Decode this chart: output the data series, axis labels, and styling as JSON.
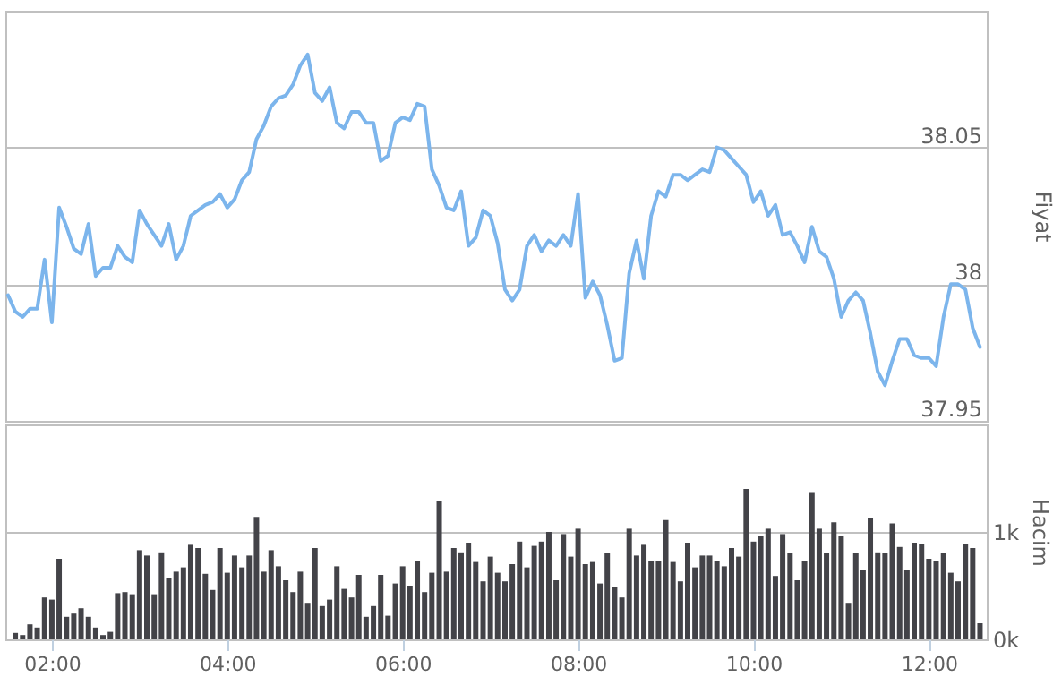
{
  "chart_data": [
    {
      "type": "line",
      "color": "#7cb5ec",
      "ylabel": "Fiyat",
      "grid": "y",
      "tick_labels": "y",
      "xlim": [
        1.47,
        12.66
      ],
      "ylim": [
        37.95,
        38.1
      ],
      "yticks": [
        37.95,
        {
          "value": 38,
          "label": "38"
        },
        38.05
      ],
      "x": [
        1.5,
        1.583,
        1.667,
        1.75,
        1.833,
        1.917,
        2,
        2.083,
        2.167,
        2.25,
        2.333,
        2.417,
        2.5,
        2.583,
        2.667,
        2.75,
        2.833,
        2.917,
        3,
        3.083,
        3.167,
        3.25,
        3.333,
        3.417,
        3.5,
        3.583,
        3.667,
        3.75,
        3.833,
        3.917,
        4,
        4.083,
        4.167,
        4.25,
        4.333,
        4.417,
        4.5,
        4.583,
        4.667,
        4.75,
        4.833,
        4.917,
        5,
        5.083,
        5.167,
        5.25,
        5.333,
        5.417,
        5.5,
        5.583,
        5.667,
        5.75,
        5.833,
        5.917,
        6,
        6.083,
        6.167,
        6.25,
        6.333,
        6.417,
        6.5,
        6.583,
        6.667,
        6.75,
        6.833,
        6.917,
        7,
        7.083,
        7.167,
        7.25,
        7.333,
        7.417,
        7.5,
        7.583,
        7.667,
        7.75,
        7.833,
        7.917,
        8,
        8.083,
        8.167,
        8.25,
        8.333,
        8.417,
        8.5,
        8.583,
        8.667,
        8.75,
        8.833,
        8.917,
        9,
        9.083,
        9.167,
        9.25,
        9.333,
        9.417,
        9.5,
        9.583,
        9.667,
        9.75,
        9.833,
        9.917,
        10,
        10.083,
        10.167,
        10.25,
        10.333,
        10.417,
        10.5,
        10.583,
        10.667,
        10.75,
        10.833,
        10.917,
        11,
        11.083,
        11.167,
        11.25,
        11.333,
        11.417,
        11.5,
        11.583,
        11.667,
        11.75,
        11.833,
        11.917,
        12,
        12.083,
        12.167,
        12.25,
        12.333,
        12.417,
        12.5,
        12.583
      ],
      "values": [
        37.996,
        37.99,
        37.988,
        37.991,
        37.991,
        38.009,
        37.986,
        38.028,
        38.021,
        38.013,
        38.011,
        38.022,
        38.003,
        38.006,
        38.006,
        38.014,
        38.01,
        38.008,
        38.027,
        38.022,
        38.018,
        38.014,
        38.022,
        38.009,
        38.014,
        38.025,
        38.027,
        38.029,
        38.03,
        38.033,
        38.028,
        38.031,
        38.038,
        38.041,
        38.053,
        38.058,
        38.065,
        38.068,
        38.069,
        38.073,
        38.08,
        38.084,
        38.07,
        38.067,
        38.072,
        38.059,
        38.057,
        38.063,
        38.063,
        38.059,
        38.059,
        38.045,
        38.047,
        38.059,
        38.061,
        38.06,
        38.066,
        38.065,
        38.042,
        38.036,
        38.028,
        38.027,
        38.034,
        38.014,
        38.017,
        38.027,
        38.025,
        38.015,
        37.998,
        37.994,
        37.998,
        38.014,
        38.018,
        38.012,
        38.016,
        38.014,
        38.018,
        38.014,
        38.033,
        37.995,
        38.001,
        37.996,
        37.985,
        37.972,
        37.973,
        38.004,
        38.016,
        38.002,
        38.025,
        38.034,
        38.032,
        38.04,
        38.04,
        38.038,
        38.04,
        38.042,
        38.041,
        38.05,
        38.049,
        38.046,
        38.043,
        38.04,
        38.03,
        38.034,
        38.025,
        38.029,
        38.018,
        38.019,
        38.014,
        38.008,
        38.021,
        38.012,
        38.01,
        38.002,
        37.988,
        37.994,
        37.997,
        37.994,
        37.982,
        37.968,
        37.963,
        37.972,
        37.98,
        37.98,
        37.974,
        37.973,
        37.973,
        37.97,
        37.988,
        38,
        38,
        37.998,
        37.984,
        37.977
      ]
    },
    {
      "type": "bar",
      "color": "#434348",
      "ylabel": "Hacim",
      "grid": "y",
      "xlim": [
        1.47,
        12.66
      ],
      "ylim": [
        0,
        2000
      ],
      "yticks": [
        {
          "value": 0,
          "label": "0k"
        },
        {
          "value": 1000,
          "label": "1k"
        }
      ],
      "xticks": [
        {
          "value": 2,
          "label": "02:00"
        },
        {
          "value": 4,
          "label": "04:00"
        },
        {
          "value": 6,
          "label": "06:00"
        },
        {
          "value": 8,
          "label": "08:00"
        },
        {
          "value": 10,
          "label": "10:00"
        },
        {
          "value": 12,
          "label": "12:00"
        }
      ],
      "x": [
        1.583,
        1.667,
        1.75,
        1.833,
        1.917,
        2,
        2.083,
        2.167,
        2.25,
        2.333,
        2.417,
        2.5,
        2.583,
        2.667,
        2.75,
        2.833,
        2.917,
        3,
        3.083,
        3.167,
        3.25,
        3.333,
        3.417,
        3.5,
        3.583,
        3.667,
        3.75,
        3.833,
        3.917,
        4,
        4.083,
        4.167,
        4.25,
        4.333,
        4.417,
        4.5,
        4.583,
        4.667,
        4.75,
        4.833,
        4.917,
        5,
        5.083,
        5.167,
        5.25,
        5.333,
        5.417,
        5.5,
        5.583,
        5.667,
        5.75,
        5.833,
        5.917,
        6,
        6.083,
        6.167,
        6.25,
        6.333,
        6.417,
        6.5,
        6.583,
        6.667,
        6.75,
        6.833,
        6.917,
        7,
        7.083,
        7.167,
        7.25,
        7.333,
        7.417,
        7.5,
        7.583,
        7.667,
        7.75,
        7.833,
        7.917,
        8,
        8.083,
        8.167,
        8.25,
        8.333,
        8.417,
        8.5,
        8.583,
        8.667,
        8.75,
        8.833,
        8.917,
        9,
        9.083,
        9.167,
        9.25,
        9.333,
        9.417,
        9.5,
        9.583,
        9.667,
        9.75,
        9.833,
        9.917,
        10,
        10.083,
        10.167,
        10.25,
        10.333,
        10.417,
        10.5,
        10.583,
        10.667,
        10.75,
        10.833,
        10.917,
        11,
        11.083,
        11.167,
        11.25,
        11.333,
        11.417,
        11.5,
        11.583,
        11.667,
        11.75,
        11.833,
        11.917,
        12,
        12.083,
        12.167,
        12.25,
        12.333,
        12.417,
        12.5,
        12.583
      ],
      "values": [
        60,
        40,
        140,
        110,
        390,
        370,
        750,
        210,
        240,
        290,
        210,
        110,
        40,
        70,
        430,
        440,
        420,
        830,
        780,
        420,
        810,
        570,
        630,
        670,
        880,
        850,
        610,
        460,
        850,
        620,
        780,
        670,
        780,
        1140,
        630,
        830,
        680,
        550,
        440,
        630,
        340,
        850,
        310,
        370,
        680,
        470,
        390,
        600,
        210,
        310,
        600,
        220,
        520,
        680,
        500,
        730,
        440,
        620,
        1290,
        630,
        850,
        810,
        900,
        720,
        540,
        770,
        620,
        540,
        700,
        910,
        670,
        870,
        910,
        1000,
        550,
        980,
        770,
        1030,
        700,
        720,
        520,
        800,
        490,
        390,
        1030,
        780,
        880,
        730,
        730,
        1110,
        720,
        540,
        900,
        670,
        780,
        780,
        730,
        680,
        850,
        770,
        1400,
        910,
        960,
        1030,
        590,
        980,
        800,
        550,
        730,
        1370,
        1030,
        800,
        1090,
        960,
        340,
        800,
        650,
        1130,
        810,
        800,
        1080,
        860,
        650,
        900,
        890,
        750,
        730,
        800,
        620,
        540,
        890,
        850,
        150
      ]
    }
  ]
}
